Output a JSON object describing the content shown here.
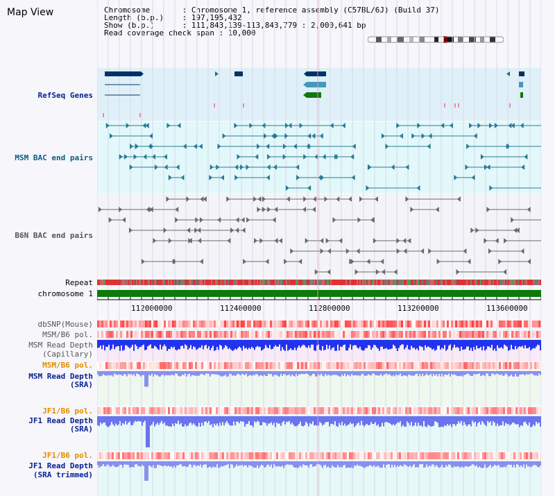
{
  "title": "Map View",
  "info": {
    "line1": "Chromosome       : Chromosome 1, reference assembly (C57BL/6J) (Build 37)",
    "line2": "Length (b.p.)    : 197,195,432",
    "line3": "Show (b.p.)      : 111,843,139-113,843,779 : 2,000,641 bp",
    "line4": "Read coverage check span : 10,000"
  },
  "tracks": {
    "refseq": "RefSeq Genes",
    "msm_bac": "MSM BAC end pairs",
    "b6n_bac": "B6N BAC end pairs",
    "repeat": "Repeat",
    "chromosome": "chromosome 1",
    "dbsnp": "dbSNP(Mouse)",
    "msm_b6_pol_1": "MSM/B6 pol.",
    "msm_read_depth_cap_1": "MSM Read Depth",
    "msm_read_depth_cap_2": "(Capillary)",
    "msm_b6_pol_2": "MSM/B6 pol.",
    "msm_read_depth_sra_1": "MSM Read Depth",
    "msm_read_depth_sra_2": "(SRA)",
    "jf1_b6_pol_1": "JF1/B6 pol.",
    "jf1_read_depth_sra_1": "JF1 Read Depth",
    "jf1_read_depth_sra_2": "(SRA)",
    "jf1_b6_pol_2": "JF1/B6 pol.",
    "jf1_read_depth_trim_1": "JF1 Read Depth",
    "jf1_read_depth_trim_2": "(SRA trimmed)"
  },
  "axis": {
    "ticks": [
      "112000000",
      "112400000",
      "112800000",
      "113200000",
      "113600000"
    ]
  },
  "colors": {
    "refseq_bg": "#dff0f8",
    "bac_bg": "#e2f8fa",
    "depth_bg": "#f8eaf6",
    "sra_bg": "#eef8ee",
    "chrom": "#0a7a0a",
    "gene_dark": "#003366",
    "gene_light": "#4499bb",
    "gene_green": "#117711"
  }
}
